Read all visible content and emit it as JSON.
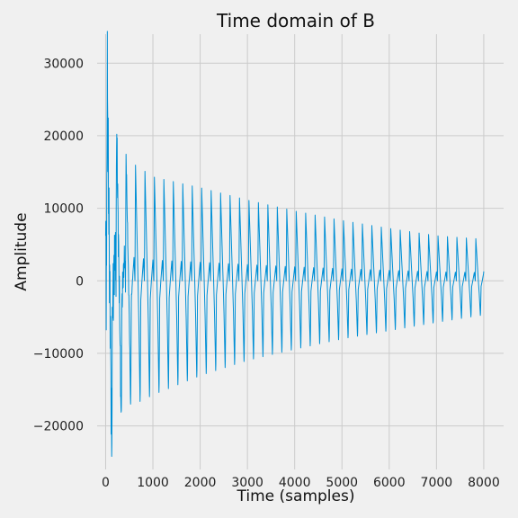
{
  "chart_data": {
    "type": "line",
    "title": "Time domain of B",
    "xlabel": "Time (samples)",
    "ylabel": "Amplitude",
    "xlim": [
      -180,
      8420
    ],
    "ylim": [
      -26000,
      34000
    ],
    "xticks": [
      0,
      1000,
      2000,
      3000,
      4000,
      5000,
      6000,
      7000,
      8000
    ],
    "yticks": [
      -20000,
      -10000,
      0,
      10000,
      20000,
      30000
    ],
    "grid": true,
    "series": [
      {
        "color": "#008fd5",
        "description_values": {
          "n_samples": 8000,
          "period_samples": 200,
          "peak_envelope": [
            [
              0,
              31000
            ],
            [
              215,
              22000
            ],
            [
              420,
              17500
            ],
            [
              620,
              16000
            ],
            [
              1020,
              14300
            ],
            [
              2020,
              12800
            ],
            [
              3020,
              11100
            ],
            [
              4020,
              9600
            ],
            [
              5020,
              8300
            ],
            [
              6020,
              7200
            ],
            [
              7020,
              6200
            ],
            [
              7850,
              5800
            ]
          ],
          "trough_envelope": [
            [
              130,
              -24000
            ],
            [
              320,
              -20700
            ],
            [
              520,
              -18200
            ],
            [
              1020,
              -16500
            ],
            [
              2020,
              -13700
            ],
            [
              3020,
              -11500
            ],
            [
              4020,
              -9900
            ],
            [
              5020,
              -8400
            ],
            [
              6020,
              -7200
            ],
            [
              7020,
              -6000
            ],
            [
              7950,
              -5000
            ]
          ],
          "final_value": 1300
        }
      }
    ]
  }
}
